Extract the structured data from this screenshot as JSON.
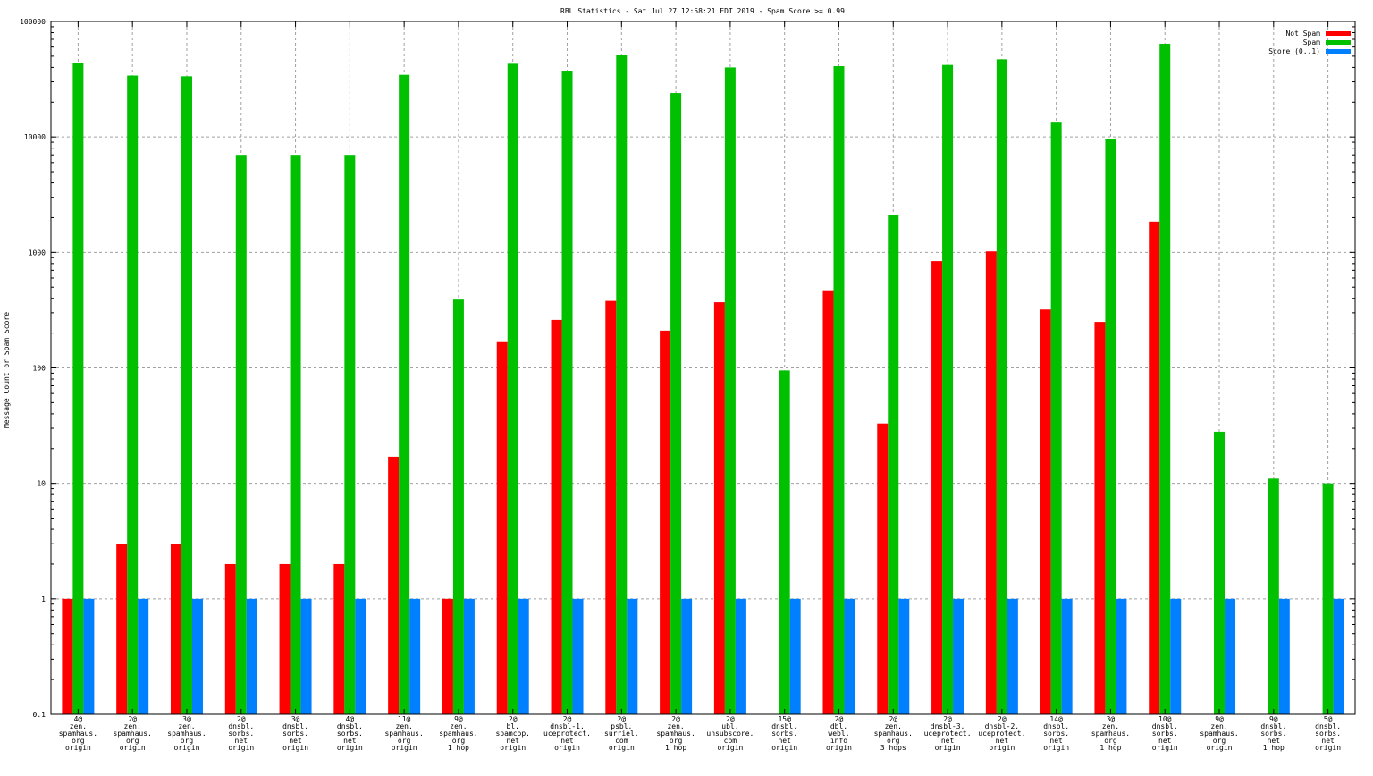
{
  "chart_data": {
    "type": "bar",
    "title": "RBL Statistics - Sat Jul 27 12:58:21 EDT 2019 - Spam Score >= 0.99",
    "ylabel": "Message Count or Spam Score",
    "yscale": "log",
    "ylim": [
      0.1,
      100000
    ],
    "yticks": [
      "0.1",
      "1",
      "10",
      "100",
      "1000",
      "10000",
      "100000"
    ],
    "grid": true,
    "legend_position": "top-right",
    "categories": [
      [
        "4@",
        "zen.",
        "spamhaus.",
        "org",
        "origin"
      ],
      [
        "2@",
        "zen.",
        "spamhaus.",
        "org",
        "origin"
      ],
      [
        "3@",
        "zen.",
        "spamhaus.",
        "org",
        "origin"
      ],
      [
        "2@",
        "dnsbl.",
        "sorbs.",
        "net",
        "origin"
      ],
      [
        "3@",
        "dnsbl.",
        "sorbs.",
        "net",
        "origin"
      ],
      [
        "4@",
        "dnsbl.",
        "sorbs.",
        "net",
        "origin"
      ],
      [
        "11@",
        "zen.",
        "spamhaus.",
        "org",
        "origin"
      ],
      [
        "9@",
        "zen.",
        "spamhaus.",
        "org",
        "1 hop"
      ],
      [
        "2@",
        "bl.",
        "spamcop.",
        "net",
        "origin"
      ],
      [
        "2@",
        "dnsbl-1.",
        "uceprotect.",
        "net",
        "origin"
      ],
      [
        "2@",
        "psbl.",
        "surriel.",
        "com",
        "origin"
      ],
      [
        "2@",
        "zen.",
        "spamhaus.",
        "org",
        "1 hop"
      ],
      [
        "2@",
        "ubl.",
        "unsubscore.",
        "com",
        "origin"
      ],
      [
        "15@",
        "dnsbl.",
        "sorbs.",
        "net",
        "origin"
      ],
      [
        "2@",
        "dbl.",
        "webl.",
        "info",
        "origin"
      ],
      [
        "2@",
        "zen.",
        "spamhaus.",
        "org",
        "3 hops"
      ],
      [
        "2@",
        "dnsbl-3.",
        "uceprotect.",
        "net",
        "origin"
      ],
      [
        "2@",
        "dnsbl-2.",
        "uceprotect.",
        "net",
        "origin"
      ],
      [
        "14@",
        "dnsbl.",
        "sorbs.",
        "net",
        "origin"
      ],
      [
        "3@",
        "zen.",
        "spamhaus.",
        "org",
        "1 hop"
      ],
      [
        "10@",
        "dnsbl.",
        "sorbs.",
        "net",
        "origin"
      ],
      [
        "9@",
        "zen.",
        "spamhaus.",
        "org",
        "origin"
      ],
      [
        "9@",
        "dnsbl.",
        "sorbs.",
        "net",
        "1 hop"
      ],
      [
        "5@",
        "dnsbl.",
        "sorbs.",
        "net",
        "origin"
      ]
    ],
    "series": [
      {
        "name": "Not Spam",
        "color": "#ff0000",
        "values": [
          1,
          3,
          3,
          2,
          2,
          2,
          17,
          1,
          170,
          260,
          380,
          210,
          370,
          null,
          470,
          33,
          840,
          1020,
          320,
          250,
          1850,
          null,
          null,
          null
        ]
      },
      {
        "name": "Spam",
        "color": "#00c000",
        "values": [
          44000,
          34000,
          33500,
          7000,
          7000,
          7000,
          34500,
          390,
          43000,
          37500,
          51000,
          24000,
          40000,
          95,
          41000,
          2100,
          42000,
          47000,
          13300,
          9600,
          64000,
          28,
          11,
          10
        ]
      },
      {
        "name": "Score (0..1)",
        "color": "#0080ff",
        "values": [
          1,
          1,
          1,
          1,
          1,
          1,
          1,
          1,
          1,
          1,
          1,
          1,
          1,
          1,
          1,
          1,
          1,
          1,
          1,
          1,
          1,
          1,
          1,
          1
        ]
      }
    ]
  }
}
